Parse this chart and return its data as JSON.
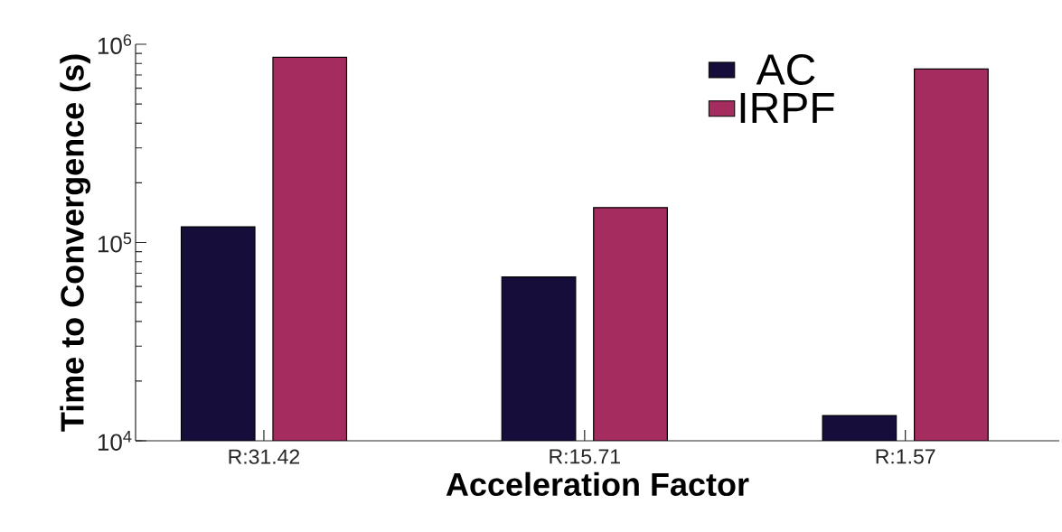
{
  "chart_data": {
    "type": "bar",
    "xlabel": "Acceleration Factor",
    "ylabel": "Time to Convergence (s)",
    "categories": [
      "R:31.42",
      "R:15.71",
      "R:1.57"
    ],
    "series": [
      {
        "name": "AC",
        "color": "#160d3a",
        "values": [
          120000,
          67000,
          13400
        ]
      },
      {
        "name": "IRPF",
        "color": "#a52c5e",
        "values": [
          860000,
          150000,
          750000
        ]
      }
    ],
    "log": true,
    "ylim": [
      10000,
      1000000
    ],
    "yticks": [
      {
        "value": 10000,
        "label": "10$^{4}$"
      },
      {
        "value": 100000,
        "label": "10$^{5}$"
      },
      {
        "value": 1000000,
        "label": "10$^{6}$"
      }
    ],
    "legend": "top right"
  }
}
